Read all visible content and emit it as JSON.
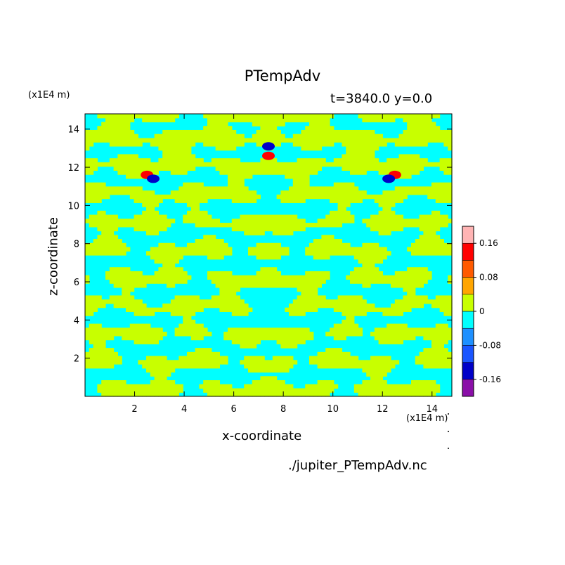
{
  "chart_data": {
    "type": "heatmap",
    "title": "PTempAdv",
    "subtitle": "t=3840.0 y=0.0",
    "xlabel": "x-coordinate",
    "ylabel": "z-coordinate",
    "x_unit": "(x1E4 m)",
    "y_unit": "(x1E4 m)",
    "xlim": [
      0,
      14.8
    ],
    "ylim": [
      0,
      14.8
    ],
    "x_ticks": [
      2,
      4,
      6,
      8,
      10,
      12,
      14
    ],
    "y_ticks": [
      2,
      4,
      6,
      8,
      10,
      12,
      14
    ],
    "dominant_levels": [
      "-0.04 to 0",
      "0 to 0.04"
    ],
    "colorbar": {
      "levels": [
        -0.2,
        -0.16,
        -0.12,
        -0.08,
        -0.04,
        0,
        0.04,
        0.08,
        0.12,
        0.16,
        0.2
      ],
      "colors": [
        "#8a0fa8",
        "#0000c8",
        "#1a55ff",
        "#1e90ff",
        "#00ffff",
        "#c8ff00",
        "#ffa500",
        "#ff5a00",
        "#ff0000",
        "#ffb4b4"
      ],
      "tick_labels": [
        "0.16",
        "0.08",
        "0",
        "-0.08",
        "-0.16"
      ],
      "tick_values": [
        0.16,
        0.08,
        0,
        -0.08,
        -0.16
      ]
    },
    "features": [
      {
        "x": 2.5,
        "z": 11.6,
        "value": 0.12
      },
      {
        "x": 12.5,
        "z": 11.6,
        "value": 0.12
      },
      {
        "x": 7.4,
        "z": 12.6,
        "value": 0.12
      },
      {
        "x": 7.4,
        "z": 13.1,
        "value": -0.16
      },
      {
        "x": 2.75,
        "z": 11.4,
        "value": -0.16
      },
      {
        "x": 12.25,
        "z": 11.4,
        "value": -0.16
      }
    ]
  },
  "footer": {
    "source_file": "./jupiter_PTempAdv.nc"
  }
}
